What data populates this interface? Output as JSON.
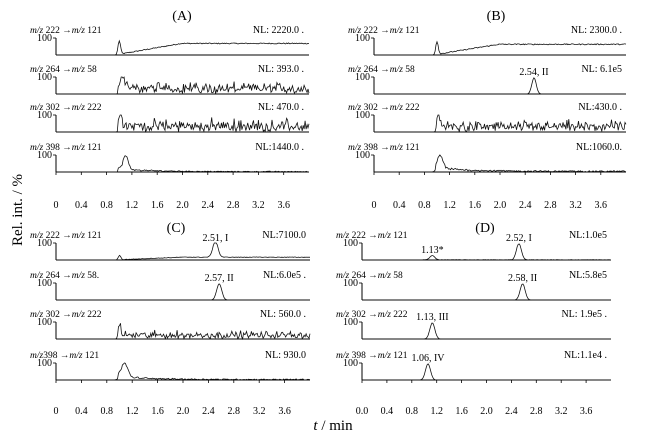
{
  "figure": {
    "ylabel": "Rel. int. / %",
    "xlabel_var": "t",
    "xlabel_unit": " / min",
    "y_tick": "100"
  },
  "chart_data": [
    {
      "type": "line",
      "label": "(A)",
      "xlim": [
        0,
        4.0
      ],
      "ylim": [
        0,
        100
      ],
      "x_ticks": [
        "0",
        "0.4",
        "0.8",
        "1.2",
        "1.6",
        "2.0",
        "2.4",
        "2.8",
        "3.2",
        "3.6"
      ],
      "series": [
        {
          "name": "m/z 222 → m/z 121",
          "transition": [
            "m/z",
            " 222 →",
            "m/z",
            " 121"
          ],
          "nl": "NL: 2220.0 .",
          "baseline": "rise",
          "level": 0.65,
          "noise": 0.06,
          "peaks": [
            {
              "t": 1.0,
              "h": 0.8,
              "w": 0.02
            }
          ]
        },
        {
          "name": "m/z 264 → m/z 58",
          "transition": [
            "m/z",
            " 264 →",
            "m/z",
            " 58"
          ],
          "nl": "NL: 393.0 .",
          "baseline": "noise",
          "level": 0.4,
          "noise": 0.5,
          "peaks": [
            {
              "t": 1.05,
              "h": 0.9,
              "w": 0.03
            }
          ]
        },
        {
          "name": "m/z 302 → m/z 222",
          "transition": [
            "m/z",
            " 302 →",
            "m/z",
            " 222"
          ],
          "nl": "NL: 470.0 .",
          "baseline": "noise",
          "level": 0.45,
          "noise": 0.5,
          "peaks": [
            {
              "t": 1.02,
              "h": 0.95,
              "w": 0.02
            }
          ]
        },
        {
          "name": "m/z 398 → m/z 121",
          "transition": [
            "m/z",
            " 398 →",
            "m/z",
            " 121"
          ],
          "nl": "NL:1440.0 .",
          "baseline": "decay",
          "level": 0.15,
          "noise": 0.15,
          "peaks": [
            {
              "t": 1.1,
              "h": 0.8,
              "w": 0.04
            }
          ]
        }
      ]
    },
    {
      "type": "line",
      "label": "(B)",
      "xlim": [
        0,
        4.0
      ],
      "ylim": [
        0,
        100
      ],
      "x_ticks": [
        "0",
        "0.4",
        "0.8",
        "1.2",
        "1.6",
        "2.0",
        "2.4",
        "2.8",
        "3.2",
        "3.6"
      ],
      "series": [
        {
          "name": "m/z 222 → m/z 121",
          "transition": [
            "m/z",
            " 222 →",
            "m/z",
            " 121"
          ],
          "nl": "NL: 2300.0 .",
          "baseline": "rise",
          "level": 0.6,
          "noise": 0.06,
          "peaks": [
            {
              "t": 1.0,
              "h": 0.75,
              "w": 0.02
            }
          ]
        },
        {
          "name": "m/z 264 → m/z 58",
          "transition": [
            "m/z",
            " 264 →",
            "m/z",
            " 58"
          ],
          "nl": "NL: 6.1e5",
          "baseline": "flat",
          "level": 0.0,
          "noise": 0.0,
          "peaks": [
            {
              "t": 2.54,
              "h": 0.95,
              "w": 0.035,
              "label": "2.54, II"
            }
          ]
        },
        {
          "name": "m/z 302 → m/z 222",
          "transition": [
            "m/z",
            " 302 →",
            "m/z",
            " 222"
          ],
          "nl": "NL:430.0 .",
          "baseline": "noise",
          "level": 0.4,
          "noise": 0.45,
          "peaks": [
            {
              "t": 1.02,
              "h": 0.9,
              "w": 0.02
            }
          ]
        },
        {
          "name": "m/z 398 → m/z 121",
          "transition": [
            "m/z",
            " 398 →",
            "m/z",
            " 121"
          ],
          "nl": "NL:1060.0.",
          "baseline": "decay",
          "level": 0.2,
          "noise": 0.25,
          "peaks": [
            {
              "t": 1.05,
              "h": 0.8,
              "w": 0.04
            }
          ]
        }
      ]
    },
    {
      "type": "line",
      "label": "(C)",
      "xlim": [
        0,
        4.0
      ],
      "ylim": [
        0,
        100
      ],
      "x_ticks": [
        "0",
        "0.4",
        "0.8",
        "1.2",
        "1.6",
        "2.0",
        "2.4",
        "2.8",
        "3.2",
        "3.6"
      ],
      "series": [
        {
          "name": "m/z 222 → m/z 121",
          "transition": [
            "m/z",
            " 222 →",
            "m/z",
            " 121"
          ],
          "nl": "NL:7100.0",
          "baseline": "rise",
          "level": 0.15,
          "noise": 0.03,
          "peaks": [
            {
              "t": 1.0,
              "h": 0.25,
              "w": 0.02
            },
            {
              "t": 2.51,
              "h": 0.95,
              "w": 0.04,
              "label": "2.51, I"
            }
          ]
        },
        {
          "name": "m/z 264 → m/z 58.",
          "transition": [
            "m/z",
            " 264 →",
            "m/z",
            " 58."
          ],
          "nl": "NL:6.0e5 .",
          "baseline": "flat",
          "level": 0.0,
          "noise": 0.0,
          "peaks": [
            {
              "t": 2.57,
              "h": 0.95,
              "w": 0.04,
              "label": "2.57, II"
            }
          ]
        },
        {
          "name": "m/z 302 → m/z 222",
          "transition": [
            "m/z",
            " 302 →",
            "m/z",
            " 222"
          ],
          "nl": "NL: 560.0 .",
          "baseline": "noise",
          "level": 0.3,
          "noise": 0.3,
          "peaks": [
            {
              "t": 1.0,
              "h": 0.7,
              "w": 0.02
            }
          ]
        },
        {
          "name": "m/z 398 → m/z 121",
          "transition": [
            "m/z",
            "398 →",
            "m/z",
            " 121"
          ],
          "nl": "NL: 930.0",
          "baseline": "decay",
          "level": 0.15,
          "noise": 0.2,
          "peaks": [
            {
              "t": 1.08,
              "h": 0.85,
              "w": 0.05
            }
          ]
        }
      ]
    },
    {
      "type": "line",
      "label": "(D)",
      "xlim": [
        0,
        4.0
      ],
      "ylim": [
        0,
        100
      ],
      "x_ticks": [
        "0.0",
        "0.4",
        "0.8",
        "1.2",
        "1.6",
        "2.0",
        "2.4",
        "2.8",
        "3.2",
        "3.6"
      ],
      "series": [
        {
          "name": "m/z 222 → m/z 121",
          "transition": [
            "m/z",
            " 222 →",
            "m/z",
            " 121"
          ],
          "nl": "NL:1.0e5",
          "baseline": "flat",
          "level": 0.0,
          "noise": 0.02,
          "peaks": [
            {
              "t": 1.13,
              "h": 0.25,
              "w": 0.04,
              "label": "1.13*"
            },
            {
              "t": 2.52,
              "h": 0.95,
              "w": 0.04,
              "label": "2.52, I"
            }
          ]
        },
        {
          "name": "m/z 264 → m/z 58",
          "transition": [
            "m/z",
            " 264 →",
            "m/z",
            " 58"
          ],
          "nl": "NL:5.8e5",
          "baseline": "flat",
          "level": 0.0,
          "noise": 0.0,
          "peaks": [
            {
              "t": 2.58,
              "h": 0.95,
              "w": 0.04,
              "label": "2.58, II"
            }
          ]
        },
        {
          "name": "m/z 302 → m/z 222",
          "transition": [
            "m/z",
            " 302 →",
            "m/z",
            " 222"
          ],
          "nl": "NL: 1.9e5 .",
          "baseline": "flat",
          "level": 0.0,
          "noise": 0.0,
          "peaks": [
            {
              "t": 1.13,
              "h": 0.95,
              "w": 0.04,
              "label": "1.13, III"
            }
          ]
        },
        {
          "name": "m/z 398 → m/z 121",
          "transition": [
            "m/z",
            " 398 →",
            "m/z",
            " 121"
          ],
          "nl": "NL:1.1e4 .",
          "baseline": "flat",
          "level": 0.0,
          "noise": 0.0,
          "peaks": [
            {
              "t": 1.06,
              "h": 0.95,
              "w": 0.04,
              "label": "1.06, IV"
            }
          ]
        }
      ]
    }
  ]
}
